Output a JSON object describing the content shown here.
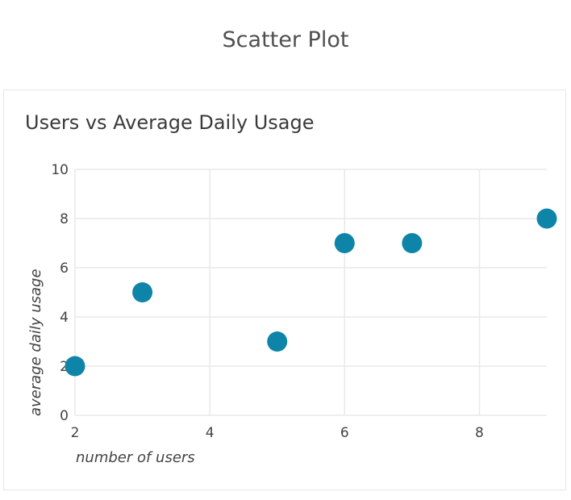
{
  "page": {
    "title": "Scatter Plot"
  },
  "chart_data": {
    "type": "scatter",
    "title": "Users vs Average Daily Usage",
    "xlabel": "number of users",
    "ylabel": "average daily usage",
    "xlim": [
      2,
      9
    ],
    "ylim": [
      0,
      10
    ],
    "xticks": [
      2,
      4,
      6,
      8
    ],
    "yticks": [
      0,
      2,
      4,
      6,
      8,
      10
    ],
    "grid": true,
    "point_color": "#0e85a8",
    "grid_color": "#e9e9e9",
    "points": [
      {
        "x": 2,
        "y": 2
      },
      {
        "x": 3,
        "y": 5
      },
      {
        "x": 5,
        "y": 3
      },
      {
        "x": 6,
        "y": 7
      },
      {
        "x": 7,
        "y": 7
      },
      {
        "x": 9,
        "y": 8
      }
    ]
  }
}
